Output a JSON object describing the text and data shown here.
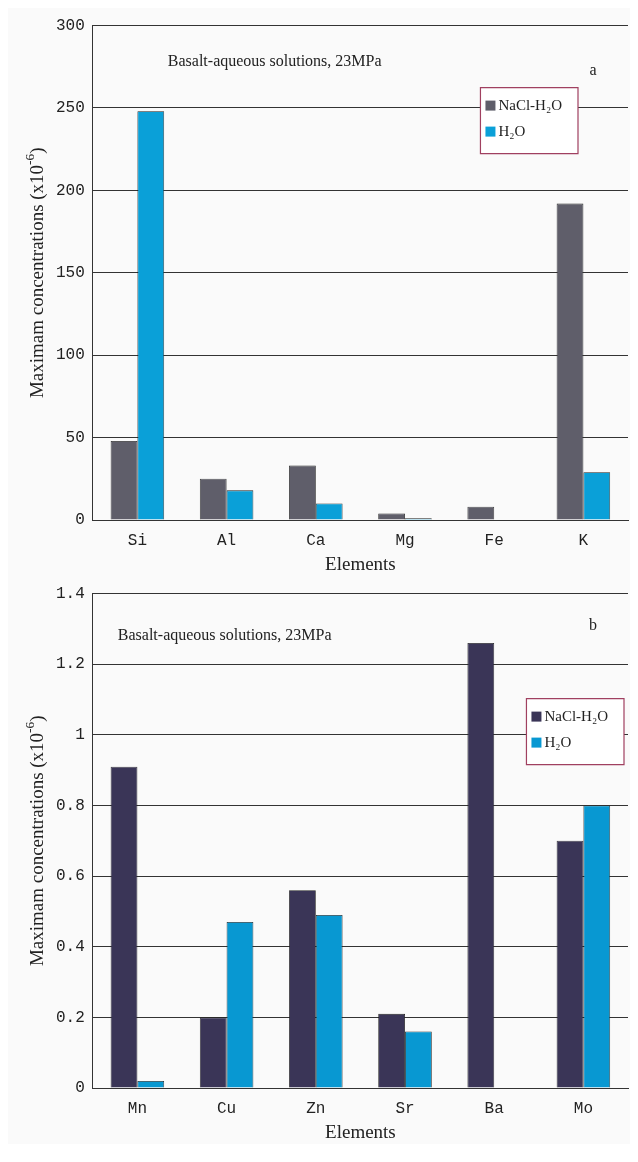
{
  "chart_data": [
    {
      "type": "bar",
      "xlabel": "Elements",
      "ylabel": "Maximam concentrations (x10$^{-6}$)",
      "categories": [
        "Si",
        "Al",
        "Ca",
        "Mg",
        "Fe",
        "K"
      ],
      "series": [
        {
          "name": "NaCl-H₂O",
          "color": "#5f5e6a",
          "values": [
            48,
            25,
            33,
            4,
            8,
            192
          ]
        },
        {
          "name": "H₂O",
          "color": "#0aa0d8",
          "values": [
            248,
            18,
            10,
            1,
            0,
            29
          ]
        }
      ],
      "ylim": [
        0,
        300
      ],
      "yticks": [
        0,
        50,
        100,
        150,
        200,
        250,
        300
      ],
      "grid": "y",
      "legend": "top right",
      "annotations": [
        "Basalt-aqueous solutions, 23MPa",
        "a"
      ]
    },
    {
      "type": "bar",
      "xlabel": "Elements",
      "ylabel": "Maximam concentrations (x10$^{-6}$)",
      "categories": [
        "Mn",
        "Cu",
        "Zn",
        "Sr",
        "Ba",
        "Mo"
      ],
      "series": [
        {
          "name": "NaCl-H₂O",
          "color": "#3a3557",
          "values": [
            0.91,
            0.2,
            0.56,
            0.21,
            1.26,
            0.7
          ]
        },
        {
          "name": "H₂O",
          "color": "#0898d2",
          "values": [
            0.02,
            0.47,
            0.49,
            0.16,
            0,
            0.8
          ]
        }
      ],
      "ylim": [
        0,
        1.4
      ],
      "yticks": [
        0,
        0.2,
        0.4,
        0.6,
        0.8,
        1,
        1.2,
        1.4
      ],
      "grid": "y",
      "legend": "top right",
      "annotations": [
        "Basalt-aqueous solutions, 23MPa",
        "b"
      ]
    }
  ]
}
